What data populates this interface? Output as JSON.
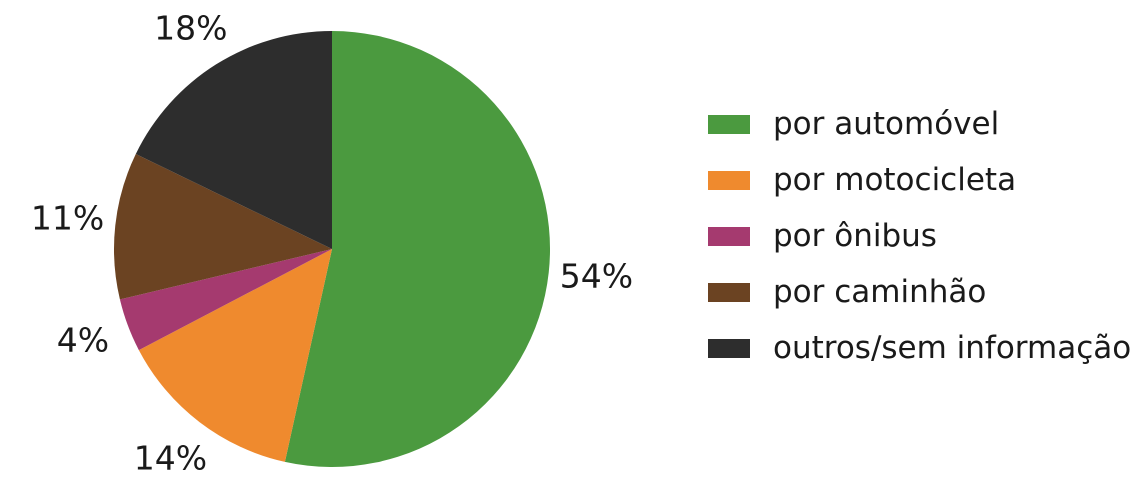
{
  "chart_data": {
    "type": "pie",
    "slices": [
      {
        "label": "por automóvel",
        "value": 54,
        "value_label": "54%",
        "color": "#4b9a3f"
      },
      {
        "label": "por motocicleta",
        "value": 14,
        "value_label": "14%",
        "color": "#ef8a2e"
      },
      {
        "label": "por ônibus",
        "value": 4,
        "value_label": "4%",
        "color": "#a53a6f"
      },
      {
        "label": "por caminhão",
        "value": 11,
        "value_label": "11%",
        "color": "#6b4322"
      },
      {
        "label": "outros/sem informação",
        "value": 18,
        "value_label": "18%",
        "color": "#2d2d2d"
      }
    ],
    "start": "12 o'clock",
    "direction": "clockwise",
    "legend_position": "right"
  }
}
